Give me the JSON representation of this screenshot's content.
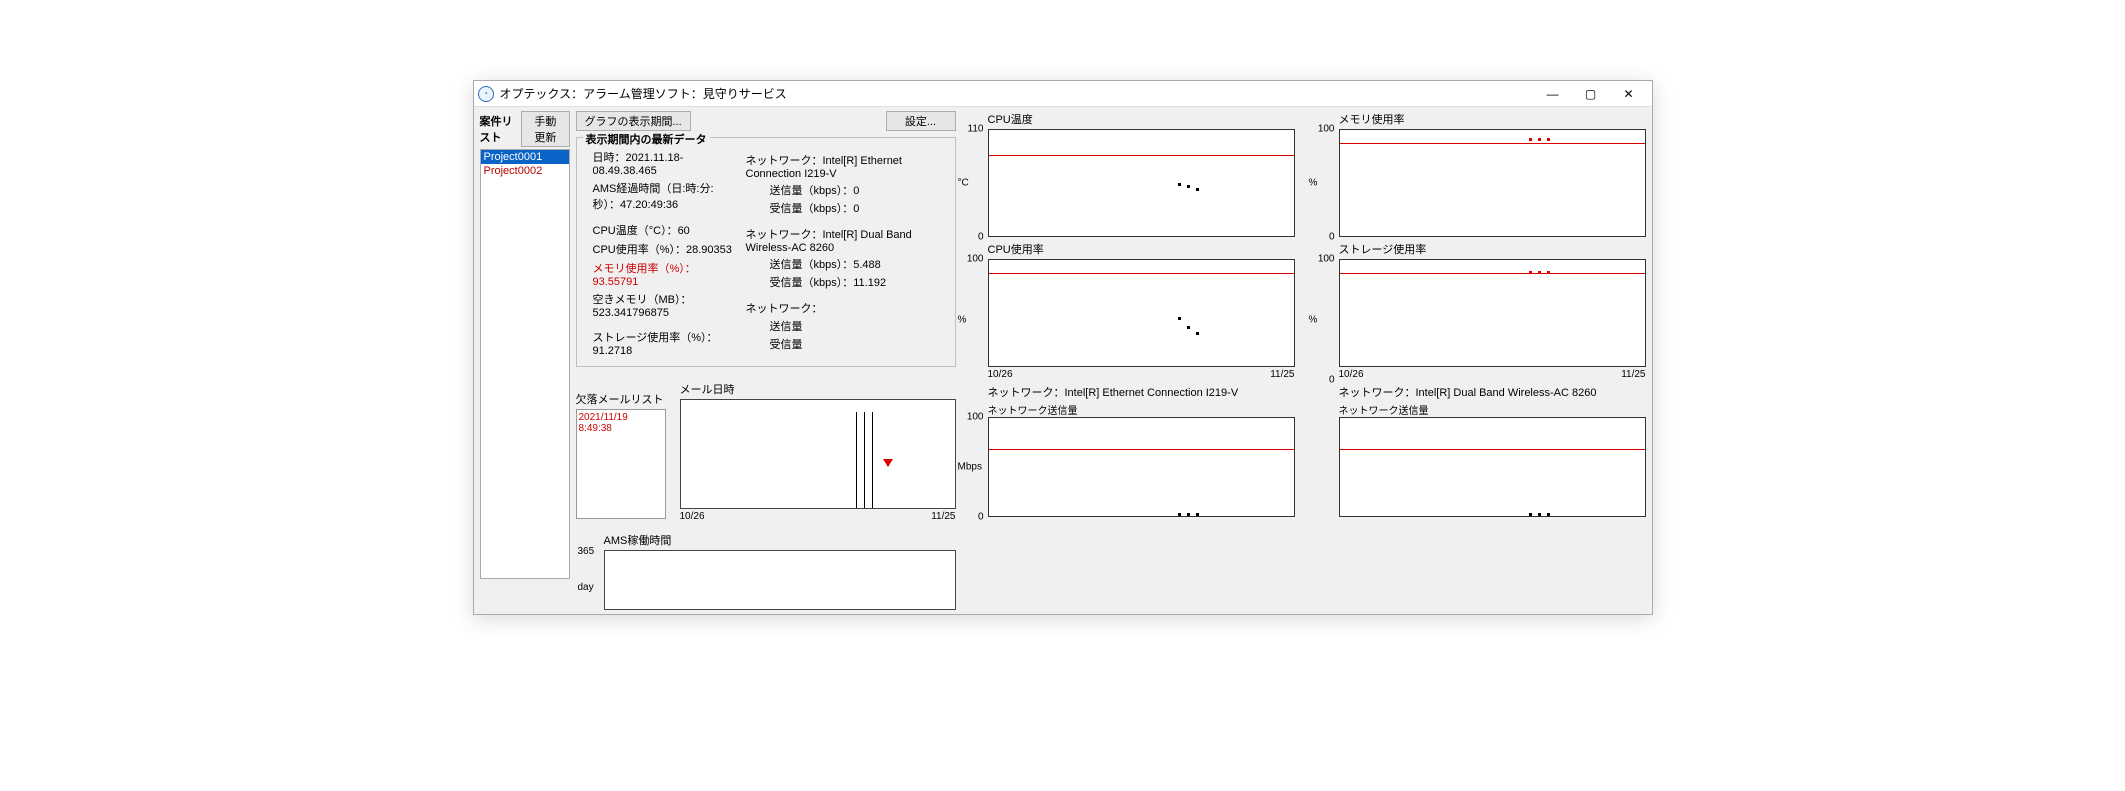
{
  "window": {
    "title": "オプテックス：アラーム管理ソフト：見守りサービス"
  },
  "sidebar": {
    "header": "案件リスト",
    "refresh_btn": "手動更新",
    "projects": [
      "Project0001",
      "Project0002"
    ],
    "selected_index": 0
  },
  "toolbar": {
    "graph_period_btn": "グラフの表示期間...",
    "settings_btn": "設定..."
  },
  "latest": {
    "title": "表示期間内の最新データ",
    "datetime_lbl": "日時：2021.11.18-08.49.38.465",
    "ams_elapsed_lbl": "AMS経過時間（日:時:分:秒）：47.20:49:36",
    "cpu_temp_lbl": "CPU温度（°C）：60",
    "cpu_usage_lbl": "CPU使用率（%）：28.90353",
    "mem_usage_lbl": "メモリ使用率（%）：93.55791",
    "free_mem_lbl": "空きメモリ（MB）：523.341796875",
    "storage_usage_lbl": "ストレージ使用率（%）：91.2718",
    "net1_head": "ネットワーク：Intel[R] Ethernet Connection I219-V",
    "net1_tx": "送信量（kbps）：0",
    "net1_rx": "受信量（kbps）：0",
    "net2_head": "ネットワーク：Intel[R] Dual Band Wireless-AC 8260",
    "net2_tx": "送信量（kbps）：5.488",
    "net2_rx": "受信量（kbps）：11.192",
    "net3_head": "ネットワーク：",
    "net3_tx": "送信量",
    "net3_rx": "受信量"
  },
  "mail_panel": {
    "list_title": "欠落メールリスト",
    "list_item": "2021/11/19 8:49:38",
    "chart_title": "メール日時",
    "x_from": "10/26",
    "x_to": "11/25",
    "vlines_pct": [
      64,
      67,
      70
    ],
    "marker_pct": 74
  },
  "ams_panel": {
    "title": "AMS稼働時間",
    "y_top": "365",
    "y_unit": "day"
  },
  "charts": {
    "x_from": "10/26",
    "x_to": "11/25",
    "cpu_temp": {
      "title": "CPU温度",
      "y_top": "110",
      "y_bot": "0",
      "unit": "°C",
      "redline_pct": 24,
      "points": [
        {
          "x": 62,
          "y": 50
        },
        {
          "x": 65,
          "y": 52
        },
        {
          "x": 68,
          "y": 55
        }
      ]
    },
    "mem_usage": {
      "title": "メモリ使用率",
      "y_top": "100",
      "y_bot": "0",
      "unit": "%",
      "redline_pct": 12,
      "points_red": [
        {
          "x": 62,
          "y": 8
        },
        {
          "x": 65,
          "y": 8
        },
        {
          "x": 68,
          "y": 8
        }
      ]
    },
    "cpu_usage": {
      "title": "CPU使用率",
      "y_top": "100",
      "y_bot": "",
      "unit": "%",
      "redline_pct": 12,
      "points": [
        {
          "x": 62,
          "y": 54
        },
        {
          "x": 65,
          "y": 62
        },
        {
          "x": 68,
          "y": 68
        }
      ]
    },
    "storage_usage": {
      "title": "ストレージ使用率",
      "y_top": "100",
      "y_bot": "0",
      "unit": "%",
      "redline_pct": 12,
      "points_red": [
        {
          "x": 62,
          "y": 10
        },
        {
          "x": 65,
          "y": 10
        },
        {
          "x": 68,
          "y": 10
        }
      ]
    },
    "net1_tx": {
      "title": "ネットワーク：Intel[R] Ethernet Connection I219-V",
      "sub": "ネットワーク送信量",
      "y_top": "100",
      "y_bot": "0",
      "unit": "Mbps",
      "redline_pct": 32,
      "points": [
        {
          "x": 62,
          "y": 97
        },
        {
          "x": 65,
          "y": 97
        },
        {
          "x": 68,
          "y": 97
        }
      ]
    },
    "net2_tx": {
      "title": "ネットワーク：Intel[R] Dual Band Wireless-AC 8260",
      "sub": "ネットワーク送信量",
      "y_top": "",
      "y_bot": "",
      "unit": "",
      "redline_pct": 32,
      "points": [
        {
          "x": 62,
          "y": 97
        },
        {
          "x": 65,
          "y": 97
        },
        {
          "x": 68,
          "y": 97
        }
      ]
    }
  }
}
